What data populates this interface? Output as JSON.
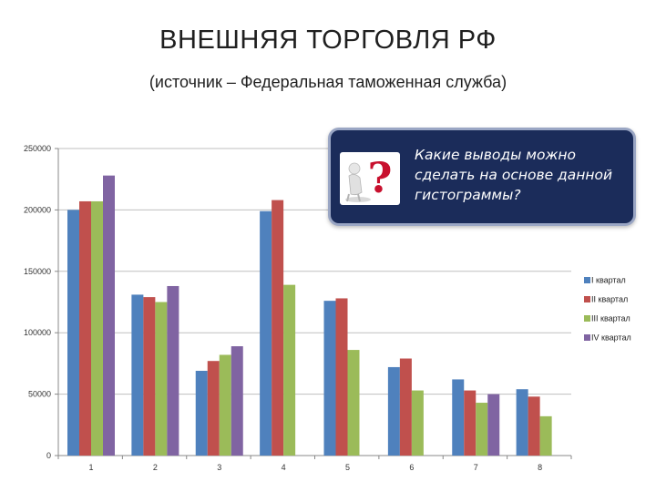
{
  "title": "ВНЕШНЯЯ ТОРГОВЛЯ РФ",
  "subtitle": "(источник – Федеральная таможенная служба)",
  "callout": {
    "text": "Какие выводы можно сделать на основе данной гистограммы?",
    "icon": "question-mark-icon",
    "background": "#1b2c5a"
  },
  "chart_data": {
    "type": "bar",
    "categories": [
      "1",
      "2",
      "3",
      "4",
      "5",
      "6",
      "7",
      "8"
    ],
    "series": [
      {
        "name": "I квартал",
        "color": "#4f81bd",
        "values": [
          200000,
          131000,
          69000,
          199000,
          126000,
          72000,
          62000,
          54000
        ]
      },
      {
        "name": "II квартал",
        "color": "#c0504d",
        "values": [
          207000,
          129000,
          77000,
          208000,
          128000,
          79000,
          53000,
          48000
        ]
      },
      {
        "name": "III квартал",
        "color": "#9bbb59",
        "values": [
          207000,
          125000,
          82000,
          139000,
          86000,
          53000,
          43000,
          32000
        ]
      },
      {
        "name": "IV квартал",
        "color": "#8064a2",
        "values": [
          228000,
          138000,
          89000,
          null,
          null,
          null,
          50000,
          null
        ]
      }
    ],
    "yticks": [
      "0",
      "50000",
      "100000",
      "150000",
      "200000",
      "250000"
    ],
    "ylim": [
      0,
      250000
    ],
    "grid": true,
    "legend_position": "right"
  }
}
